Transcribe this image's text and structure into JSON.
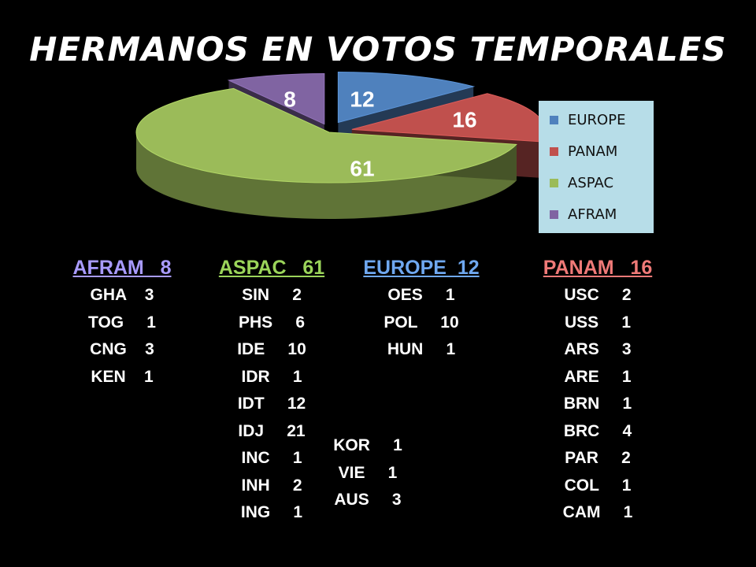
{
  "title": "HERMANOS EN VOTOS TEMPORALES",
  "chart_data": {
    "type": "pie",
    "title": "HERMANOS EN VOTOS TEMPORALES",
    "style": "3d-exploded",
    "categories": [
      "EUROPE",
      "PANAM",
      "ASPAC",
      "AFRAM"
    ],
    "values": [
      12,
      16,
      61,
      8
    ],
    "colors": [
      "#4f81bd",
      "#c0504d",
      "#9bbb59",
      "#8064a2"
    ],
    "data_labels": [
      "12",
      "16",
      "61",
      "8"
    ],
    "legend": {
      "position": "right",
      "entries": [
        "EUROPE",
        "PANAM",
        "ASPAC",
        "AFRAM"
      ]
    }
  },
  "columns": [
    {
      "key": "afram",
      "header": "AFRAM   8",
      "color": "#a99bff",
      "rows": [
        "GHA    3",
        "TOG     1",
        "CNG    3",
        "KEN    1"
      ]
    },
    {
      "key": "aspac",
      "header": "ASPAC   61",
      "color": "#9bd45a",
      "rows": [
        "SIN     2",
        "PHS     6",
        "IDE     10",
        "IDR     1",
        "IDT     12",
        "IDJ     21",
        "INC     1",
        "INH     2",
        "ING     1"
      ]
    },
    {
      "key": "europe",
      "header": "EUROPE  12",
      "color": "#6fa8f0",
      "rows": [
        "OES     1",
        "POL     10",
        "HUN     1"
      ]
    },
    {
      "key": "europe_extra",
      "header": "",
      "color": "#ffffff",
      "rows": [
        "KOR     1",
        "VIE     1",
        "AUS     3"
      ]
    },
    {
      "key": "panam",
      "header": "PANAM   16",
      "color": "#f07a78",
      "rows": [
        "USC     2",
        "USS     1",
        "ARS     3",
        "ARE     1",
        "BRN     1",
        "BRC     4",
        "PAR     2",
        "COL     1",
        "CAM     1"
      ]
    }
  ]
}
